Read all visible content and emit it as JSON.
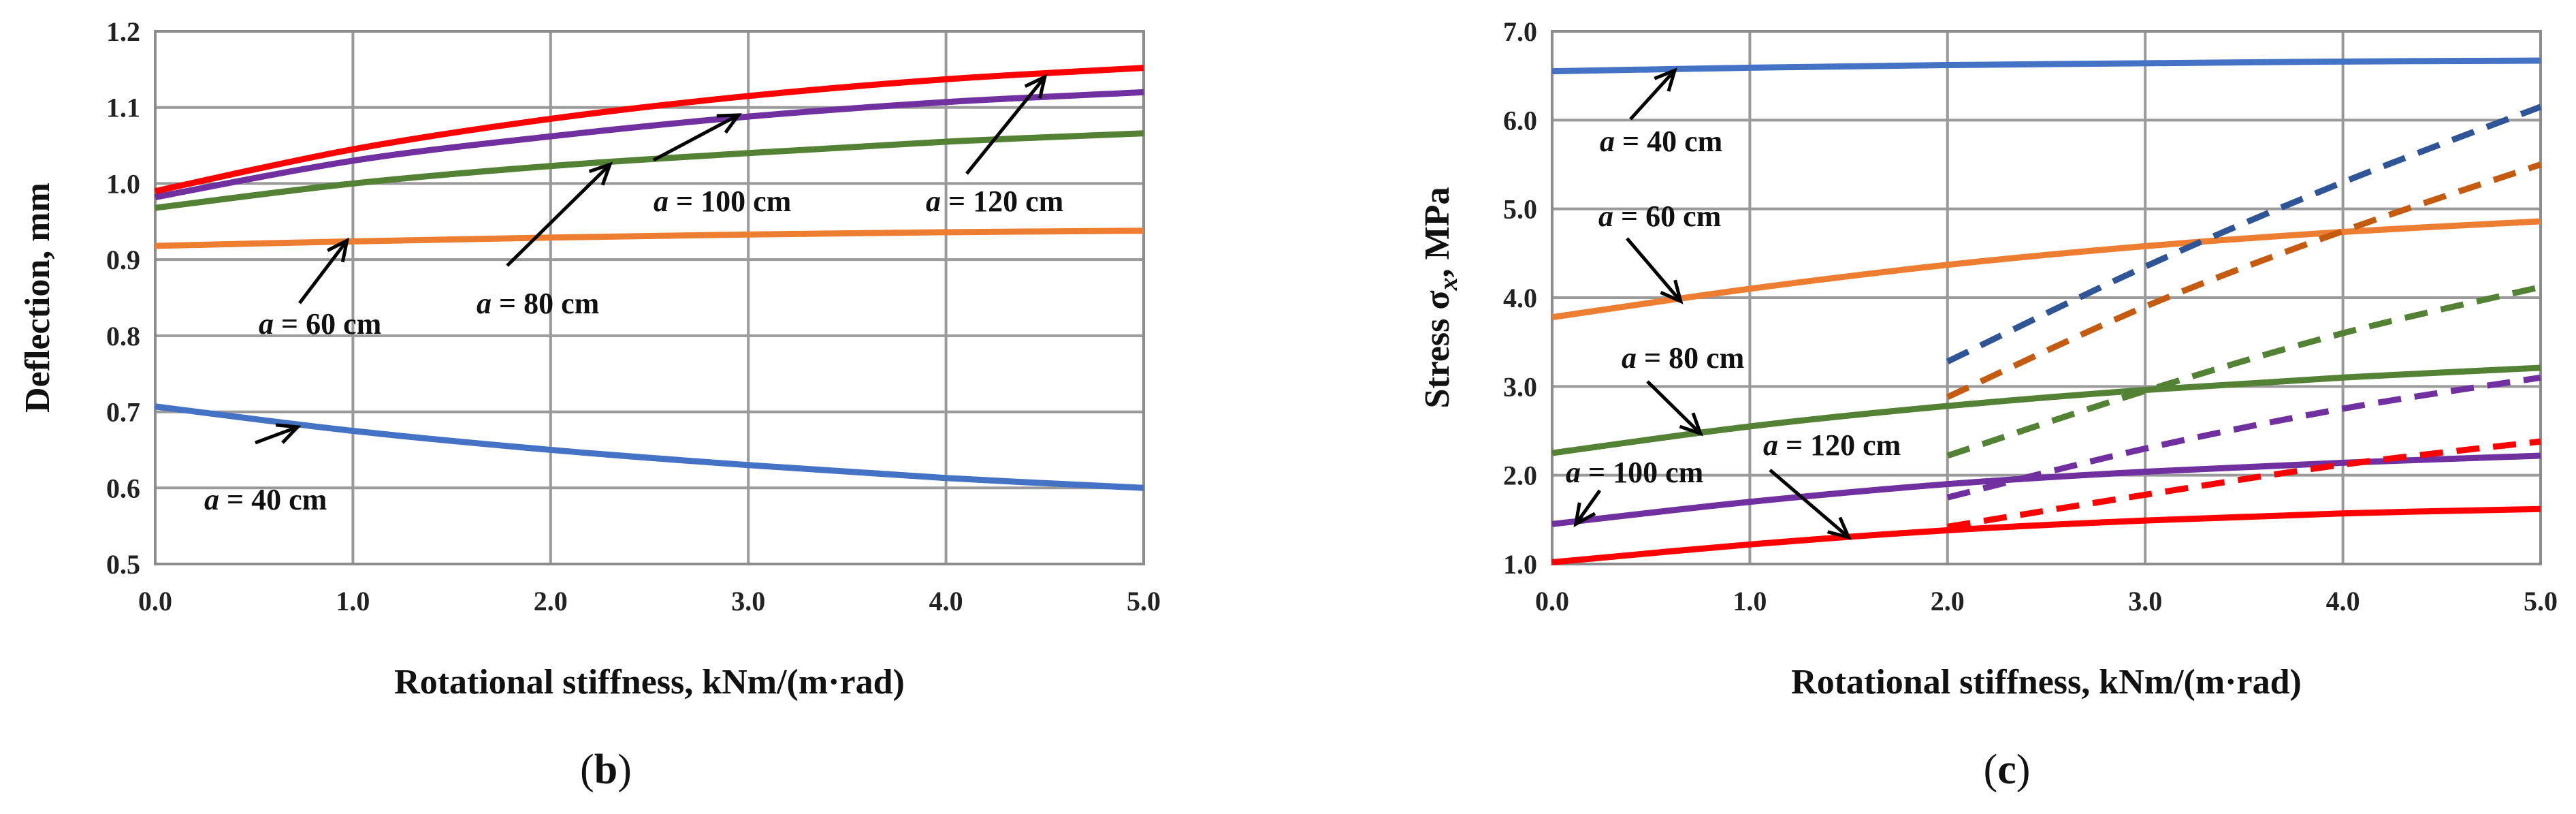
{
  "chart_data": [
    {
      "type": "line",
      "panel_label": "b",
      "xlabel": "Rotational stiffness, kNm/(m·rad)",
      "ylabel": "Deflection, mm",
      "xlim": [
        0,
        5
      ],
      "ylim": [
        0.5,
        1.2
      ],
      "xticks": [
        "0.0",
        "1.0",
        "2.0",
        "3.0",
        "4.0",
        "5.0"
      ],
      "yticks": [
        "0.5",
        "0.6",
        "0.7",
        "0.8",
        "0.9",
        "1.0",
        "1.1",
        "1.2"
      ],
      "grid": true,
      "series": [
        {
          "name": "a = 40 cm",
          "color": "#4472C4",
          "style": "solid",
          "x": [
            0,
            1,
            2,
            3,
            4,
            5
          ],
          "values": [
            0.707,
            0.675,
            0.65,
            0.63,
            0.613,
            0.6
          ]
        },
        {
          "name": "a = 60 cm",
          "color": "#ED7D31",
          "style": "solid",
          "x": [
            0,
            1,
            2,
            3,
            4,
            5
          ],
          "values": [
            0.918,
            0.924,
            0.929,
            0.933,
            0.936,
            0.938
          ]
        },
        {
          "name": "a = 80 cm",
          "color": "#548235",
          "style": "solid",
          "x": [
            0,
            1,
            2,
            3,
            4,
            5
          ],
          "values": [
            0.968,
            1.0,
            1.023,
            1.04,
            1.055,
            1.066
          ]
        },
        {
          "name": "a = 100 cm",
          "color": "#7030A0",
          "style": "solid",
          "x": [
            0,
            1,
            2,
            3,
            4,
            5
          ],
          "values": [
            0.982,
            1.03,
            1.062,
            1.088,
            1.107,
            1.12
          ]
        },
        {
          "name": "a = 120 cm",
          "color": "#FF0000",
          "style": "solid",
          "x": [
            0,
            1,
            2,
            3,
            4,
            5
          ],
          "values": [
            0.99,
            1.045,
            1.085,
            1.115,
            1.137,
            1.152
          ]
        }
      ],
      "annotations": [
        {
          "text_italic": "a",
          "text": " = 40 cm",
          "arrow_to": [
            0.72,
            0.68
          ]
        },
        {
          "text_italic": "a",
          "text": " = 60 cm",
          "arrow_to": [
            0.97,
            0.925
          ]
        },
        {
          "text_italic": "a",
          "text": " = 80 cm",
          "arrow_to": [
            2.3,
            1.025
          ]
        },
        {
          "text_italic": "a",
          "text": " = 100 cm",
          "arrow_to": [
            2.95,
            1.09
          ]
        },
        {
          "text_italic": "a",
          "text": " = 120 cm",
          "arrow_to": [
            4.5,
            1.14
          ]
        }
      ]
    },
    {
      "type": "line",
      "panel_label": "c",
      "xlabel": "Rotational stiffness, kNm/(m·rad)",
      "ylabel_prefix": "Stress σ",
      "ylabel_sub": "x",
      "ylabel_suffix": ", MPa",
      "xlim": [
        0,
        5
      ],
      "ylim": [
        1.0,
        7.0
      ],
      "xticks": [
        "0.0",
        "1.0",
        "2.0",
        "3.0",
        "4.0",
        "5.0"
      ],
      "yticks": [
        "1.0",
        "2.0",
        "3.0",
        "4.0",
        "5.0",
        "6.0",
        "7.0"
      ],
      "grid": true,
      "series": [
        {
          "name": "a = 40 cm",
          "color": "#4472C4",
          "style": "solid",
          "x": [
            0,
            1,
            2,
            3,
            4,
            5
          ],
          "values": [
            6.55,
            6.59,
            6.62,
            6.64,
            6.66,
            6.67
          ]
        },
        {
          "name": "a = 60 cm",
          "color": "#ED7D31",
          "style": "solid",
          "x": [
            0,
            1,
            2,
            3,
            4,
            5
          ],
          "values": [
            3.78,
            4.1,
            4.37,
            4.58,
            4.74,
            4.86
          ]
        },
        {
          "name": "a = 80 cm",
          "color": "#548235",
          "style": "solid",
          "x": [
            0,
            1,
            2,
            3,
            4,
            5
          ],
          "values": [
            2.25,
            2.55,
            2.78,
            2.96,
            3.1,
            3.21
          ]
        },
        {
          "name": "a = 100 cm",
          "color": "#7030A0",
          "style": "solid",
          "x": [
            0,
            1,
            2,
            3,
            4,
            5
          ],
          "values": [
            1.45,
            1.7,
            1.9,
            2.04,
            2.14,
            2.22
          ]
        },
        {
          "name": "a = 120 cm",
          "color": "#FF0000",
          "style": "solid",
          "x": [
            0,
            1,
            2,
            3,
            4,
            5
          ],
          "values": [
            1.02,
            1.22,
            1.38,
            1.49,
            1.57,
            1.62
          ]
        },
        {
          "name": "a = 40 cm (dashed)",
          "color": "#2F5597",
          "style": "dashed",
          "x": [
            2,
            3,
            4,
            5
          ],
          "values": [
            3.28,
            4.35,
            5.3,
            6.15
          ]
        },
        {
          "name": "a = 60 cm (dashed)",
          "color": "#C55A11",
          "style": "dashed",
          "x": [
            2,
            3,
            4,
            5
          ],
          "values": [
            2.88,
            3.9,
            4.75,
            5.5
          ]
        },
        {
          "name": "a = 80 cm (dashed)",
          "color": "#548235",
          "style": "dashed",
          "x": [
            2,
            3,
            4,
            5
          ],
          "values": [
            2.22,
            2.95,
            3.6,
            4.12
          ]
        },
        {
          "name": "a = 100 cm (dashed)",
          "color": "#7030A0",
          "style": "dashed",
          "x": [
            2,
            3,
            4,
            5
          ],
          "values": [
            1.75,
            2.3,
            2.75,
            3.1
          ]
        },
        {
          "name": "a = 120 cm (dashed)",
          "color": "#FF0000",
          "style": "dashed",
          "x": [
            2,
            3,
            4,
            5
          ],
          "values": [
            1.42,
            1.78,
            2.12,
            2.38
          ]
        }
      ],
      "annotations": [
        {
          "text_italic": "a",
          "text": " = 40 cm",
          "arrow_to": [
            0.62,
            6.56
          ]
        },
        {
          "text_italic": "a",
          "text": " = 60 cm",
          "arrow_to": [
            0.65,
            3.96
          ]
        },
        {
          "text_italic": "a",
          "text": " = 80 cm",
          "arrow_to": [
            0.75,
            2.47
          ]
        },
        {
          "text_italic": "a",
          "text": " = 100 cm",
          "arrow_to": [
            0.12,
            1.45
          ]
        },
        {
          "text_italic": "a",
          "text": " = 120 cm",
          "arrow_to": [
            1.5,
            1.3
          ]
        }
      ]
    }
  ]
}
